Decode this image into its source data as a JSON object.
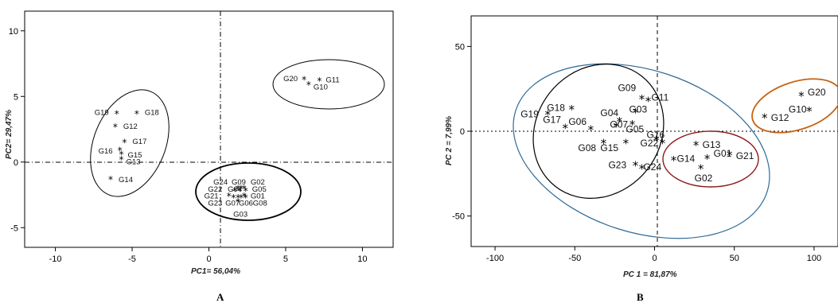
{
  "panels": {
    "left_label": "A",
    "right_label": "B"
  },
  "chart_data": [
    {
      "type": "scatter",
      "panel": "A",
      "xlabel": "PC1= 56,04%",
      "ylabel": "PC2= 29,47%",
      "xlim": [
        -12,
        12
      ],
      "ylim": [
        -6.5,
        11.5
      ],
      "xticks": [
        "-10",
        "-5",
        "0",
        "5",
        "10"
      ],
      "yticks": [
        "-5",
        "0",
        "5",
        "10"
      ],
      "xtick_values": [
        -10,
        -5,
        0,
        5,
        10
      ],
      "ytick_values": [
        -5,
        0,
        5,
        10
      ],
      "reference_lines": {
        "x": 0,
        "y": 0
      },
      "points": [
        {
          "label": "G19",
          "x": -6.0,
          "y": 3.7
        },
        {
          "label": "G18",
          "x": -4.7,
          "y": 3.7
        },
        {
          "label": "G12",
          "x": -6.1,
          "y": 2.7
        },
        {
          "label": "G17",
          "x": -5.5,
          "y": 1.5
        },
        {
          "label": "G16",
          "x": -5.8,
          "y": 0.9
        },
        {
          "label": "G15",
          "x": -5.7,
          "y": 0.6
        },
        {
          "label": "G13",
          "x": -5.7,
          "y": 0.2
        },
        {
          "label": "G14",
          "x": -6.4,
          "y": -1.3
        },
        {
          "label": "G20",
          "x": 6.2,
          "y": 6.3
        },
        {
          "label": "G10",
          "x": 6.5,
          "y": 5.9
        },
        {
          "label": "G11",
          "x": 7.2,
          "y": 6.2
        },
        {
          "label": "G24",
          "x": 1.9,
          "y": -2.0
        },
        {
          "label": "G09",
          "x": 2.1,
          "y": -2.0
        },
        {
          "label": "G02",
          "x": 2.3,
          "y": -2.0
        },
        {
          "label": "G22",
          "x": 1.7,
          "y": -2.2
        },
        {
          "label": "G04",
          "x": 2.0,
          "y": -2.2
        },
        {
          "label": "G05",
          "x": 2.4,
          "y": -2.2
        },
        {
          "label": "G21",
          "x": 1.3,
          "y": -2.6
        },
        {
          "label": "G01",
          "x": 2.3,
          "y": -2.6
        },
        {
          "label": "G23",
          "x": 1.6,
          "y": -2.7
        },
        {
          "label": "G07",
          "x": 1.9,
          "y": -2.7
        },
        {
          "label": "G06",
          "x": 2.1,
          "y": -2.7
        },
        {
          "label": "G08",
          "x": 2.4,
          "y": -2.7
        },
        {
          "label": "G03",
          "x": 1.9,
          "y": -3.0
        }
      ]
    },
    {
      "type": "scatter",
      "panel": "B",
      "xlabel": "PC 1 = 81,87%",
      "ylabel": "PC 2 = 7,99%",
      "xlim": [
        -115,
        115
      ],
      "ylim": [
        -68,
        68
      ],
      "xticks": [
        "-100",
        "-50",
        "0",
        "50",
        "100"
      ],
      "yticks": [
        "-50",
        "0",
        "50"
      ],
      "xtick_values": [
        -100,
        -50,
        0,
        50,
        100
      ],
      "ytick_values": [
        -50,
        0,
        50
      ],
      "reference_lines": {
        "x": 0,
        "y": 0
      },
      "points": [
        {
          "label": "G18",
          "x": -52,
          "y": 13
        },
        {
          "label": "G19",
          "x": -67,
          "y": 10
        },
        {
          "label": "G17",
          "x": -56,
          "y": 2
        },
        {
          "label": "G06",
          "x": -40,
          "y": 1
        },
        {
          "label": "G04",
          "x": -22,
          "y": 6
        },
        {
          "label": "G09",
          "x": -8,
          "y": 19
        },
        {
          "label": "G03",
          "x": -12,
          "y": 11
        },
        {
          "label": "G07",
          "x": -24,
          "y": 3
        },
        {
          "label": "G11",
          "x": -4,
          "y": 18
        },
        {
          "label": "G05",
          "x": -14,
          "y": 4
        },
        {
          "label": "G16",
          "x": 1,
          "y": -5
        },
        {
          "label": "G08",
          "x": -32,
          "y": -7
        },
        {
          "label": "G15",
          "x": -18,
          "y": -7
        },
        {
          "label": "G22",
          "x": 5,
          "y": -7
        },
        {
          "label": "G23",
          "x": -12,
          "y": -20
        },
        {
          "label": "G24",
          "x": -8,
          "y": -22
        },
        {
          "label": "G14",
          "x": 12,
          "y": -17
        },
        {
          "label": "G13",
          "x": 26,
          "y": -8
        },
        {
          "label": "G01",
          "x": 33,
          "y": -16
        },
        {
          "label": "G02",
          "x": 29,
          "y": -22
        },
        {
          "label": "G21",
          "x": 47,
          "y": -14
        },
        {
          "label": "G20",
          "x": 92,
          "y": 21
        },
        {
          "label": "G10",
          "x": 97,
          "y": 12
        },
        {
          "label": "G12",
          "x": 69,
          "y": 8
        }
      ]
    }
  ]
}
